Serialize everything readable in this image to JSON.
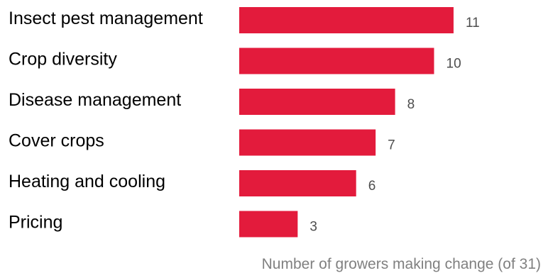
{
  "chart_data": {
    "type": "bar",
    "orientation": "horizontal",
    "categories": [
      "Insect pest management",
      "Crop diversity",
      "Disease management",
      "Cover crops",
      "Heating and cooling",
      "Pricing"
    ],
    "values": [
      11,
      10,
      8,
      7,
      6,
      3
    ],
    "xlabel": "Number of growers making change (of 31)",
    "bar_color": "#e31b3c",
    "value_labels": true,
    "grid": false,
    "legend": "none"
  }
}
